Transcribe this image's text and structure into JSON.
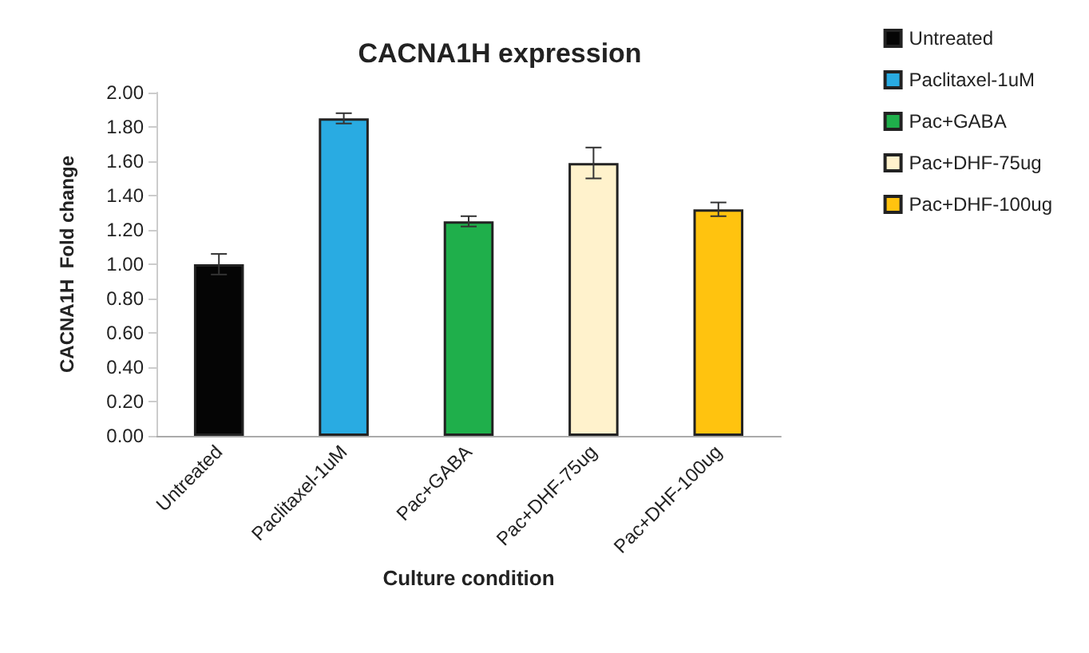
{
  "chart_data": {
    "type": "bar",
    "title": "CACNA1H expression",
    "xlabel": "Culture condition",
    "ylabel": "CACNA1H  Fold change",
    "categories": [
      "Untreated",
      "Paclitaxel-1uM",
      "Pac+GABA",
      "Pac+DHF-75ug",
      "Pac+DHF-100ug"
    ],
    "series": [
      {
        "name": "Untreated",
        "color": "#050505",
        "values": [
          1.0,
          null,
          null,
          null,
          null
        ],
        "errors": [
          0.06,
          null,
          null,
          null,
          null
        ]
      },
      {
        "name": "Paclitaxel-1uM",
        "color": "#29abe2",
        "values": [
          null,
          1.85,
          null,
          null,
          null
        ],
        "errors": [
          null,
          0.03,
          null,
          null,
          null
        ]
      },
      {
        "name": "Pac+GABA",
        "color": "#1faf4b",
        "values": [
          null,
          null,
          1.25,
          null,
          null
        ],
        "errors": [
          null,
          null,
          0.03,
          null,
          null
        ]
      },
      {
        "name": "Pac+DHF-75ug",
        "color": "#fff2cc",
        "values": [
          null,
          null,
          null,
          1.59,
          null
        ],
        "errors": [
          null,
          null,
          null,
          0.09,
          null
        ]
      },
      {
        "name": "Pac+DHF-100ug",
        "color": "#ffc30f",
        "values": [
          null,
          null,
          null,
          null,
          1.32
        ],
        "errors": [
          null,
          null,
          null,
          null,
          0.04
        ]
      }
    ],
    "stacked": true,
    "ylim": [
      0,
      2
    ],
    "yticks": [
      {
        "value": 0,
        "label": "0.00"
      },
      {
        "value": 0.2,
        "label": "0.20"
      },
      {
        "value": 0.4,
        "label": "0.40"
      },
      {
        "value": 0.6,
        "label": "0.60"
      },
      {
        "value": 0.8,
        "label": "0.80"
      },
      {
        "value": 1,
        "label": "1.00"
      },
      {
        "value": 1.2,
        "label": "1.20"
      },
      {
        "value": 1.4,
        "label": "1.40"
      },
      {
        "value": 1.6,
        "label": "1.60"
      },
      {
        "value": 1.8,
        "label": "1.80"
      },
      {
        "value": 2,
        "label": "2.00"
      }
    ],
    "grid": false,
    "legend": "top right"
  }
}
